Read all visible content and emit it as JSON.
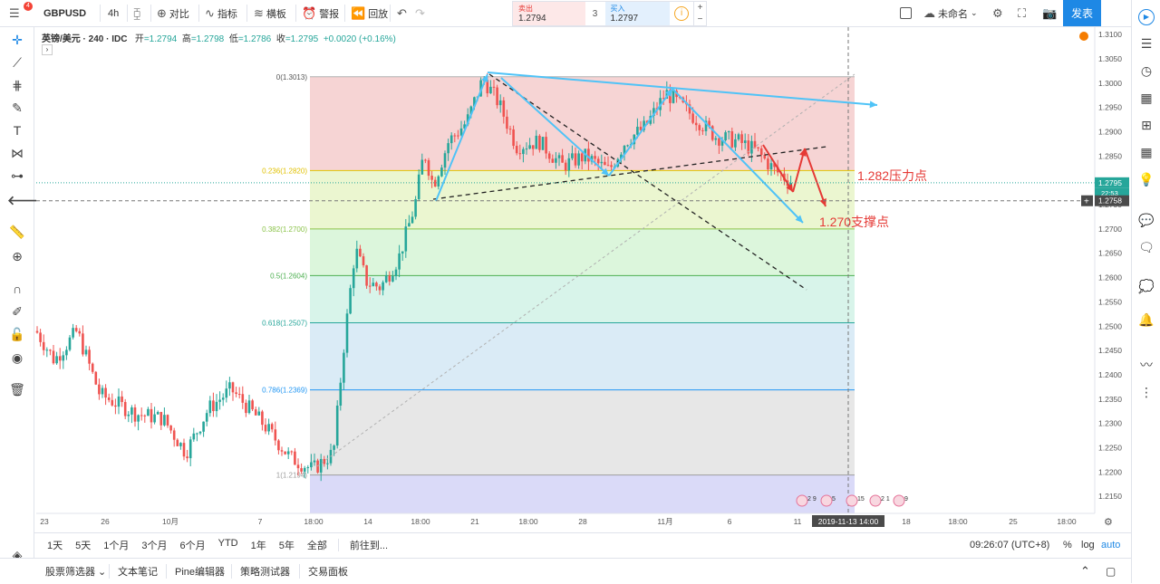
{
  "top": {
    "symbol": "GBPUSD",
    "notif_count": "4",
    "interval": "4h",
    "compare": "对比",
    "indicators": "指标",
    "templates": "横板",
    "alert": "警报",
    "replay": "回放",
    "trade": {
      "sell_label": "卖出",
      "sell_price": "1.2794",
      "spread": "3",
      "buy_label": "买入",
      "buy_price": "1.2797"
    },
    "layout_name": "未命名",
    "publish": "发表"
  },
  "legend": {
    "name": "英镑/美元 · 240 · IDC",
    "open_label": "开",
    "open": "=1.2794",
    "high_label": "高",
    "high": "=1.2798",
    "low_label": "低",
    "low": "=1.2786",
    "close_label": "收",
    "close": "=1.2795",
    "change": "+0.0020 (+0.16%)"
  },
  "chart_data": {
    "type": "candlestick",
    "symbol": "GBPUSD",
    "interval": "4h",
    "ylim": [
      1.2115,
      1.3115
    ],
    "y_ticks": [
      "1.3100",
      "1.3050",
      "1.3000",
      "1.2950",
      "1.2900",
      "1.2850",
      "1.2800",
      "1.2750",
      "1.2700",
      "1.2650",
      "1.2600",
      "1.2550",
      "1.2500",
      "1.2450",
      "1.2400",
      "1.2350",
      "1.2300",
      "1.2250",
      "1.2200",
      "1.2150"
    ],
    "x_ticks": [
      "23",
      "26",
      "10月",
      "7",
      "18:00",
      "14",
      "18:00",
      "21",
      "18:00",
      "28",
      "11月",
      "6",
      "11",
      "2019-11-13  14:00",
      "18",
      "18:00",
      "25",
      "18:00"
    ],
    "last_price": "1.2795",
    "last_time": "22:53",
    "crosshair_price": "1.2758",
    "crosshair_time": "2019-11-13  14:00",
    "fib_levels": [
      {
        "label": "0(1.3013)",
        "value": 1.3013,
        "fill": "#f4cccc",
        "line": "#b0b0b0"
      },
      {
        "label": "0.236(1.2820)",
        "value": 1.282,
        "fill": "#e8f5c8",
        "line": "#e0c000"
      },
      {
        "label": "0.382(1.2700)",
        "value": 1.27,
        "fill": "#d6f5d6",
        "line": "#8bc34a"
      },
      {
        "label": "0.5(1.2604)",
        "value": 1.2604,
        "fill": "#d1f2e6",
        "line": "#4caf50"
      },
      {
        "label": "0.618(1.2507)",
        "value": 1.2507,
        "fill": "#d4e8f5",
        "line": "#26a69a"
      },
      {
        "label": "0.786(1.2369)",
        "value": 1.2369,
        "fill": "#e3e3e3",
        "line": "#2196f3"
      },
      {
        "label": "1(1.2194)",
        "value": 1.2194,
        "fill": "#d4d4f7",
        "line": "#9e9e9e"
      }
    ],
    "annotations": [
      {
        "text": "1.282压力点",
        "color": "#e53935"
      },
      {
        "text": "1.270支撑点",
        "color": "#e53935"
      }
    ]
  },
  "colors": {
    "up": "#26a69a",
    "down": "#ef5350",
    "accent": "#1e88e5",
    "arrow_blue": "#4fc3f7",
    "arrow_red": "#e53935"
  },
  "bottom": {
    "ranges": [
      "1天",
      "5天",
      "1个月",
      "3个月",
      "6个月",
      "YTD",
      "1年",
      "5年",
      "全部"
    ],
    "goto": "前往到...",
    "clock": "09:26:07 (UTC+8)",
    "percent": "%",
    "log": "log",
    "auto": "auto"
  },
  "tabs": [
    "股票筛选器",
    "文本笔记",
    "Pine编辑器",
    "策略测试器",
    "交易面板"
  ]
}
